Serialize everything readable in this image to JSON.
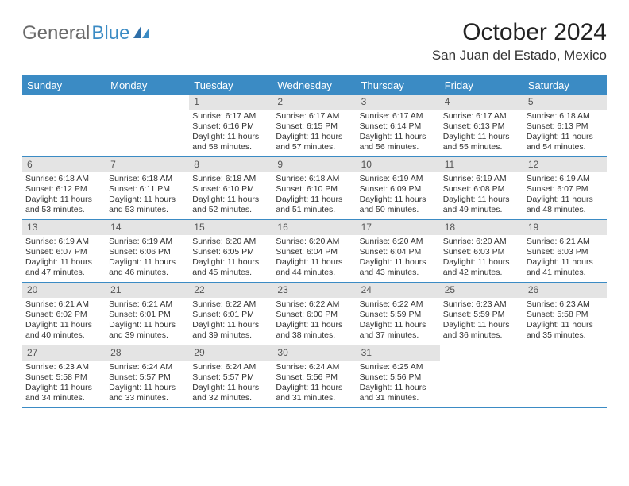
{
  "logo": {
    "text1": "General",
    "text2": "Blue"
  },
  "title": "October 2024",
  "location": "San Juan del Estado, Mexico",
  "colors": {
    "accent": "#3b8bc4",
    "dayNumBg": "#e4e4e4",
    "text": "#333333",
    "logoGray": "#6a6a6a"
  },
  "daysOfWeek": [
    "Sunday",
    "Monday",
    "Tuesday",
    "Wednesday",
    "Thursday",
    "Friday",
    "Saturday"
  ],
  "weeks": [
    [
      {
        "n": "",
        "sr": "",
        "ss": "",
        "dl": ""
      },
      {
        "n": "",
        "sr": "",
        "ss": "",
        "dl": ""
      },
      {
        "n": "1",
        "sr": "Sunrise: 6:17 AM",
        "ss": "Sunset: 6:16 PM",
        "dl": "Daylight: 11 hours and 58 minutes."
      },
      {
        "n": "2",
        "sr": "Sunrise: 6:17 AM",
        "ss": "Sunset: 6:15 PM",
        "dl": "Daylight: 11 hours and 57 minutes."
      },
      {
        "n": "3",
        "sr": "Sunrise: 6:17 AM",
        "ss": "Sunset: 6:14 PM",
        "dl": "Daylight: 11 hours and 56 minutes."
      },
      {
        "n": "4",
        "sr": "Sunrise: 6:17 AM",
        "ss": "Sunset: 6:13 PM",
        "dl": "Daylight: 11 hours and 55 minutes."
      },
      {
        "n": "5",
        "sr": "Sunrise: 6:18 AM",
        "ss": "Sunset: 6:13 PM",
        "dl": "Daylight: 11 hours and 54 minutes."
      }
    ],
    [
      {
        "n": "6",
        "sr": "Sunrise: 6:18 AM",
        "ss": "Sunset: 6:12 PM",
        "dl": "Daylight: 11 hours and 53 minutes."
      },
      {
        "n": "7",
        "sr": "Sunrise: 6:18 AM",
        "ss": "Sunset: 6:11 PM",
        "dl": "Daylight: 11 hours and 53 minutes."
      },
      {
        "n": "8",
        "sr": "Sunrise: 6:18 AM",
        "ss": "Sunset: 6:10 PM",
        "dl": "Daylight: 11 hours and 52 minutes."
      },
      {
        "n": "9",
        "sr": "Sunrise: 6:18 AM",
        "ss": "Sunset: 6:10 PM",
        "dl": "Daylight: 11 hours and 51 minutes."
      },
      {
        "n": "10",
        "sr": "Sunrise: 6:19 AM",
        "ss": "Sunset: 6:09 PM",
        "dl": "Daylight: 11 hours and 50 minutes."
      },
      {
        "n": "11",
        "sr": "Sunrise: 6:19 AM",
        "ss": "Sunset: 6:08 PM",
        "dl": "Daylight: 11 hours and 49 minutes."
      },
      {
        "n": "12",
        "sr": "Sunrise: 6:19 AM",
        "ss": "Sunset: 6:07 PM",
        "dl": "Daylight: 11 hours and 48 minutes."
      }
    ],
    [
      {
        "n": "13",
        "sr": "Sunrise: 6:19 AM",
        "ss": "Sunset: 6:07 PM",
        "dl": "Daylight: 11 hours and 47 minutes."
      },
      {
        "n": "14",
        "sr": "Sunrise: 6:19 AM",
        "ss": "Sunset: 6:06 PM",
        "dl": "Daylight: 11 hours and 46 minutes."
      },
      {
        "n": "15",
        "sr": "Sunrise: 6:20 AM",
        "ss": "Sunset: 6:05 PM",
        "dl": "Daylight: 11 hours and 45 minutes."
      },
      {
        "n": "16",
        "sr": "Sunrise: 6:20 AM",
        "ss": "Sunset: 6:04 PM",
        "dl": "Daylight: 11 hours and 44 minutes."
      },
      {
        "n": "17",
        "sr": "Sunrise: 6:20 AM",
        "ss": "Sunset: 6:04 PM",
        "dl": "Daylight: 11 hours and 43 minutes."
      },
      {
        "n": "18",
        "sr": "Sunrise: 6:20 AM",
        "ss": "Sunset: 6:03 PM",
        "dl": "Daylight: 11 hours and 42 minutes."
      },
      {
        "n": "19",
        "sr": "Sunrise: 6:21 AM",
        "ss": "Sunset: 6:03 PM",
        "dl": "Daylight: 11 hours and 41 minutes."
      }
    ],
    [
      {
        "n": "20",
        "sr": "Sunrise: 6:21 AM",
        "ss": "Sunset: 6:02 PM",
        "dl": "Daylight: 11 hours and 40 minutes."
      },
      {
        "n": "21",
        "sr": "Sunrise: 6:21 AM",
        "ss": "Sunset: 6:01 PM",
        "dl": "Daylight: 11 hours and 39 minutes."
      },
      {
        "n": "22",
        "sr": "Sunrise: 6:22 AM",
        "ss": "Sunset: 6:01 PM",
        "dl": "Daylight: 11 hours and 39 minutes."
      },
      {
        "n": "23",
        "sr": "Sunrise: 6:22 AM",
        "ss": "Sunset: 6:00 PM",
        "dl": "Daylight: 11 hours and 38 minutes."
      },
      {
        "n": "24",
        "sr": "Sunrise: 6:22 AM",
        "ss": "Sunset: 5:59 PM",
        "dl": "Daylight: 11 hours and 37 minutes."
      },
      {
        "n": "25",
        "sr": "Sunrise: 6:23 AM",
        "ss": "Sunset: 5:59 PM",
        "dl": "Daylight: 11 hours and 36 minutes."
      },
      {
        "n": "26",
        "sr": "Sunrise: 6:23 AM",
        "ss": "Sunset: 5:58 PM",
        "dl": "Daylight: 11 hours and 35 minutes."
      }
    ],
    [
      {
        "n": "27",
        "sr": "Sunrise: 6:23 AM",
        "ss": "Sunset: 5:58 PM",
        "dl": "Daylight: 11 hours and 34 minutes."
      },
      {
        "n": "28",
        "sr": "Sunrise: 6:24 AM",
        "ss": "Sunset: 5:57 PM",
        "dl": "Daylight: 11 hours and 33 minutes."
      },
      {
        "n": "29",
        "sr": "Sunrise: 6:24 AM",
        "ss": "Sunset: 5:57 PM",
        "dl": "Daylight: 11 hours and 32 minutes."
      },
      {
        "n": "30",
        "sr": "Sunrise: 6:24 AM",
        "ss": "Sunset: 5:56 PM",
        "dl": "Daylight: 11 hours and 31 minutes."
      },
      {
        "n": "31",
        "sr": "Sunrise: 6:25 AM",
        "ss": "Sunset: 5:56 PM",
        "dl": "Daylight: 11 hours and 31 minutes."
      },
      {
        "n": "",
        "sr": "",
        "ss": "",
        "dl": ""
      },
      {
        "n": "",
        "sr": "",
        "ss": "",
        "dl": ""
      }
    ]
  ]
}
